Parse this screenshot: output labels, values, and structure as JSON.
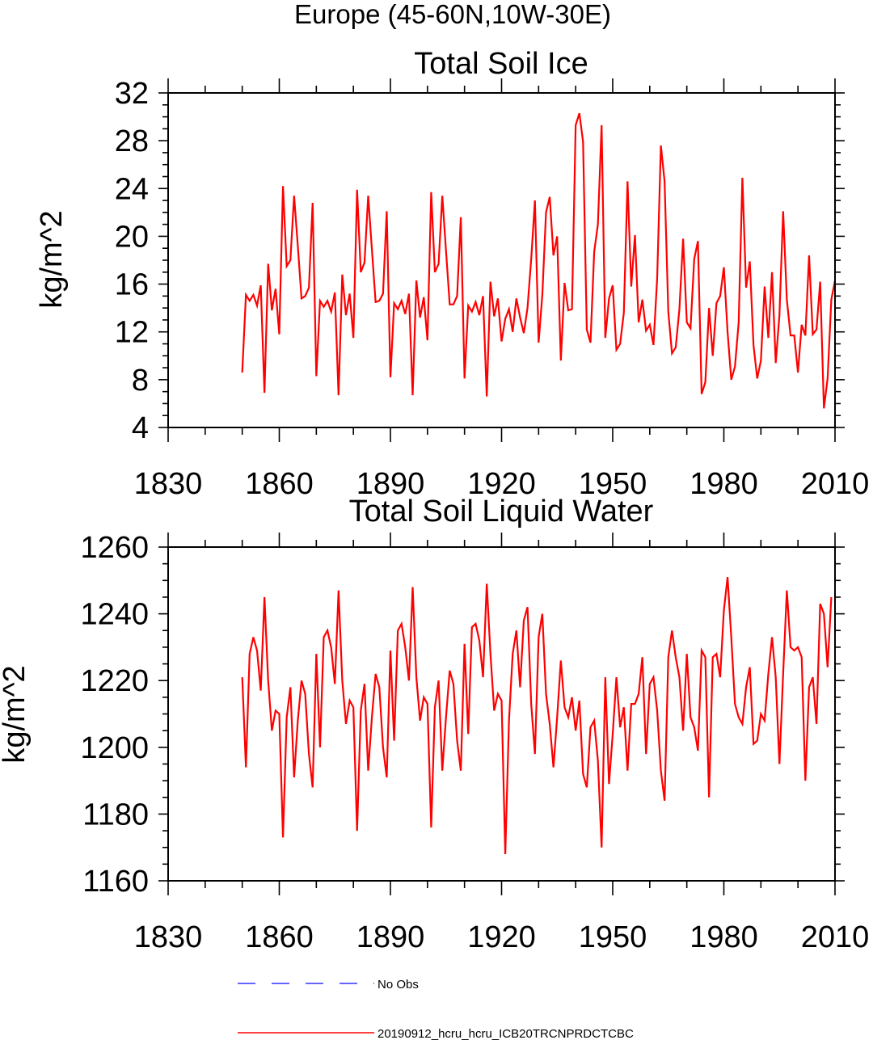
{
  "figure_title": "Europe (45-60N,10W-30E)",
  "colors": {
    "model": "#ff0000",
    "obs": "#3333ff",
    "axis": "#000000"
  },
  "legend": {
    "obs_label": "No Obs",
    "model_label": "20190912_hcru_hcru_ICB20TRCNPRDCTCBC"
  },
  "chart_data": [
    {
      "type": "line",
      "title": "Total Soil Ice",
      "xlabel": "",
      "ylabel": "kg/m^2",
      "xlim": [
        1830,
        2010
      ],
      "ylim": [
        4,
        32
      ],
      "x_ticks": [
        1830,
        1860,
        1890,
        1920,
        1950,
        1980,
        2010
      ],
      "y_ticks": [
        4,
        8,
        12,
        16,
        20,
        24,
        28,
        32
      ],
      "x_start": 1850,
      "series": [
        {
          "name": "20190912_hcru_hcru_ICB20TRCNPRDCTCBC",
          "values": [
            8.6,
            15.1,
            14.6,
            15.1,
            14.2,
            15.9,
            6.9,
            17.7,
            13.8,
            15.6,
            11.8,
            24.2,
            17.5,
            18.0,
            23.4,
            19.2,
            14.8,
            15.0,
            15.7,
            22.8,
            8.3,
            14.6,
            14.1,
            14.6,
            13.7,
            15.3,
            6.7,
            16.8,
            13.4,
            15.2,
            11.5,
            23.9,
            17.0,
            17.8,
            23.4,
            18.9,
            14.5,
            14.6,
            15.2,
            22.1,
            8.2,
            14.4,
            13.9,
            14.6,
            13.5,
            15.2,
            6.7,
            16.3,
            13.2,
            14.9,
            11.3,
            23.7,
            17.0,
            17.7,
            23.4,
            18.8,
            14.3,
            14.3,
            15.0,
            21.6,
            8.1,
            14.2,
            13.7,
            14.5,
            13.4,
            15.0,
            6.6,
            16.2,
            13.3,
            14.8,
            11.2,
            13.1,
            13.9,
            12.0,
            14.8,
            13.2,
            11.9,
            14.0,
            18.1,
            23.0,
            11.1,
            15.1,
            22.0,
            23.3,
            18.4,
            20.0,
            9.6,
            16.1,
            13.8,
            13.9,
            29.3,
            30.3,
            27.9,
            12.2,
            11.1,
            18.7,
            21.0,
            29.3,
            11.5,
            14.8,
            15.9,
            10.5,
            11.0,
            13.6,
            24.6,
            15.8,
            20.1,
            12.8,
            14.7,
            12.1,
            12.6,
            10.9,
            16.5,
            27.6,
            24.6,
            13.7,
            10.2,
            10.7,
            13.9,
            19.8,
            12.8,
            12.3,
            18.1,
            19.6,
            6.8,
            7.8,
            14.0,
            10.0,
            14.4,
            15.0,
            17.4,
            12.0,
            8.0,
            9.1,
            12.8,
            24.9,
            15.7,
            17.9,
            10.9,
            8.1,
            9.6,
            15.8,
            11.5,
            17.0,
            9.4,
            13.4,
            22.1,
            14.7,
            11.7,
            11.7,
            8.6,
            12.6,
            11.7,
            18.4,
            11.8,
            12.2,
            16.2,
            5.6,
            8.1,
            14.7,
            16.3
          ]
        }
      ]
    },
    {
      "type": "line",
      "title": "Total Soil Liquid Water",
      "xlabel": "",
      "ylabel": "kg/m^2",
      "xlim": [
        1830,
        2010
      ],
      "ylim": [
        1160,
        1260
      ],
      "x_ticks": [
        1830,
        1860,
        1890,
        1920,
        1950,
        1980,
        2010
      ],
      "y_ticks": [
        1160,
        1180,
        1200,
        1220,
        1240,
        1260
      ],
      "x_start": 1850,
      "series": [
        {
          "name": "20190912_hcru_hcru_ICB20TRCNPRDCTCBC",
          "values": [
            1221,
            1194,
            1228,
            1233,
            1229,
            1217,
            1245,
            1220,
            1205,
            1211,
            1210,
            1173,
            1209,
            1218,
            1191,
            1208,
            1220,
            1216,
            1198,
            1188,
            1228,
            1200,
            1233,
            1235,
            1230,
            1219,
            1247,
            1220,
            1207,
            1214,
            1212,
            1175,
            1211,
            1219,
            1193,
            1209,
            1222,
            1218,
            1200,
            1191,
            1229,
            1202,
            1235,
            1237,
            1230,
            1220,
            1248,
            1221,
            1208,
            1215,
            1213,
            1176,
            1212,
            1220,
            1193,
            1209,
            1223,
            1219,
            1202,
            1193,
            1231,
            1204,
            1236,
            1237,
            1232,
            1221,
            1249,
            1228,
            1211,
            1216,
            1214,
            1168,
            1208,
            1228,
            1235,
            1218,
            1238,
            1242,
            1213,
            1198,
            1233,
            1240,
            1216,
            1207,
            1194,
            1209,
            1226,
            1212,
            1209,
            1215,
            1205,
            1214,
            1192,
            1188,
            1206,
            1208,
            1196,
            1170,
            1221,
            1189,
            1204,
            1221,
            1206,
            1212,
            1193,
            1213,
            1213,
            1216,
            1227,
            1198,
            1219,
            1221,
            1211,
            1193,
            1184,
            1227,
            1235,
            1227,
            1221,
            1205,
            1228,
            1209,
            1206,
            1199,
            1229,
            1227,
            1185,
            1227,
            1228,
            1221,
            1241,
            1251,
            1233,
            1213,
            1209,
            1207,
            1218,
            1224,
            1201,
            1202,
            1210,
            1208,
            1222,
            1233,
            1221,
            1195,
            1222,
            1247,
            1230,
            1229,
            1230,
            1227,
            1190,
            1218,
            1221,
            1207,
            1243,
            1240,
            1224,
            1245
          ]
        }
      ]
    }
  ]
}
